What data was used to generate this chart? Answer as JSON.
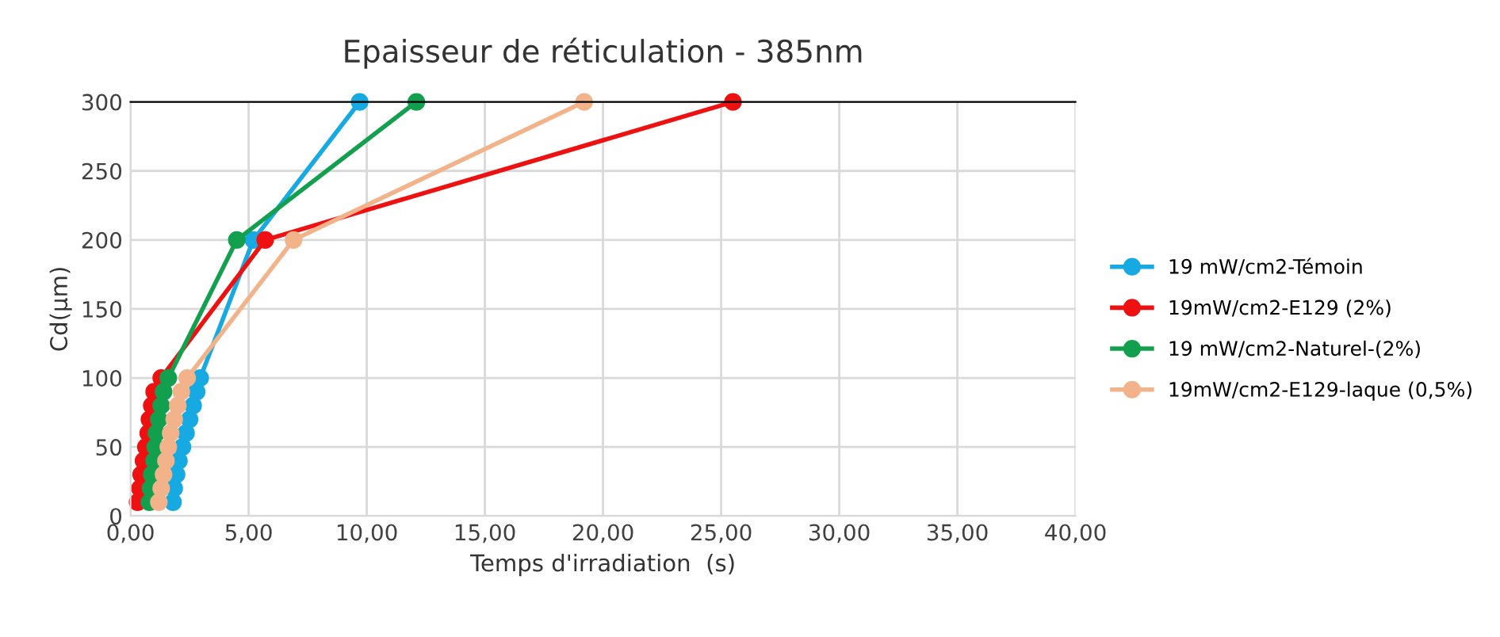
{
  "chart_data": {
    "type": "line",
    "title": "Epaisseur de réticulation - 385nm",
    "xlabel": "Temps d'irradiation  (s)",
    "ylabel": "Cd(µm)",
    "xlim": [
      0,
      40
    ],
    "ylim": [
      0,
      300
    ],
    "xticks": [
      {
        "value": 0,
        "label": "0,00"
      },
      {
        "value": 5,
        "label": "5,00"
      },
      {
        "value": 10,
        "label": "10,00"
      },
      {
        "value": 15,
        "label": "15,00"
      },
      {
        "value": 20,
        "label": "20,00"
      },
      {
        "value": 25,
        "label": "25,00"
      },
      {
        "value": 30,
        "label": "30,00"
      },
      {
        "value": 35,
        "label": "35,00"
      },
      {
        "value": 40,
        "label": "40,00"
      }
    ],
    "yticks": [
      0,
      50,
      100,
      150,
      200,
      250,
      300
    ],
    "grid": true,
    "legend": "right",
    "marker": "circle",
    "line_style": "solid",
    "series": [
      {
        "name": "19 mW/cm2-Témoin",
        "color": "#17a9e1",
        "x": [
          1.8,
          1.85,
          1.95,
          2.05,
          2.2,
          2.35,
          2.5,
          2.65,
          2.8,
          2.95,
          5.2,
          9.7
        ],
        "values": [
          10,
          20,
          30,
          40,
          50,
          60,
          70,
          80,
          90,
          100,
          200,
          300
        ]
      },
      {
        "name": "19mW/cm2-E129 (2%)",
        "color": "#ee1111",
        "x": [
          0.3,
          0.4,
          0.45,
          0.55,
          0.65,
          0.75,
          0.8,
          0.9,
          1.0,
          1.3,
          5.7,
          25.5
        ],
        "values": [
          10,
          20,
          30,
          40,
          50,
          60,
          70,
          80,
          90,
          100,
          200,
          300
        ]
      },
      {
        "name": "19 mW/cm2-Naturel-(2%)",
        "color": "#13a04e",
        "x": [
          0.8,
          0.85,
          0.9,
          1.0,
          1.05,
          1.1,
          1.2,
          1.3,
          1.4,
          1.6,
          4.5,
          12.1
        ],
        "values": [
          10,
          20,
          30,
          40,
          50,
          60,
          70,
          80,
          90,
          100,
          200,
          300
        ]
      },
      {
        "name": "19mW/cm2-E129-laque (0,5%)",
        "color": "#f3b38a",
        "x": [
          1.2,
          1.3,
          1.4,
          1.5,
          1.6,
          1.7,
          1.85,
          2.0,
          2.15,
          2.4,
          6.9,
          19.2
        ],
        "values": [
          10,
          20,
          30,
          40,
          50,
          60,
          70,
          80,
          90,
          100,
          200,
          300
        ]
      }
    ]
  }
}
